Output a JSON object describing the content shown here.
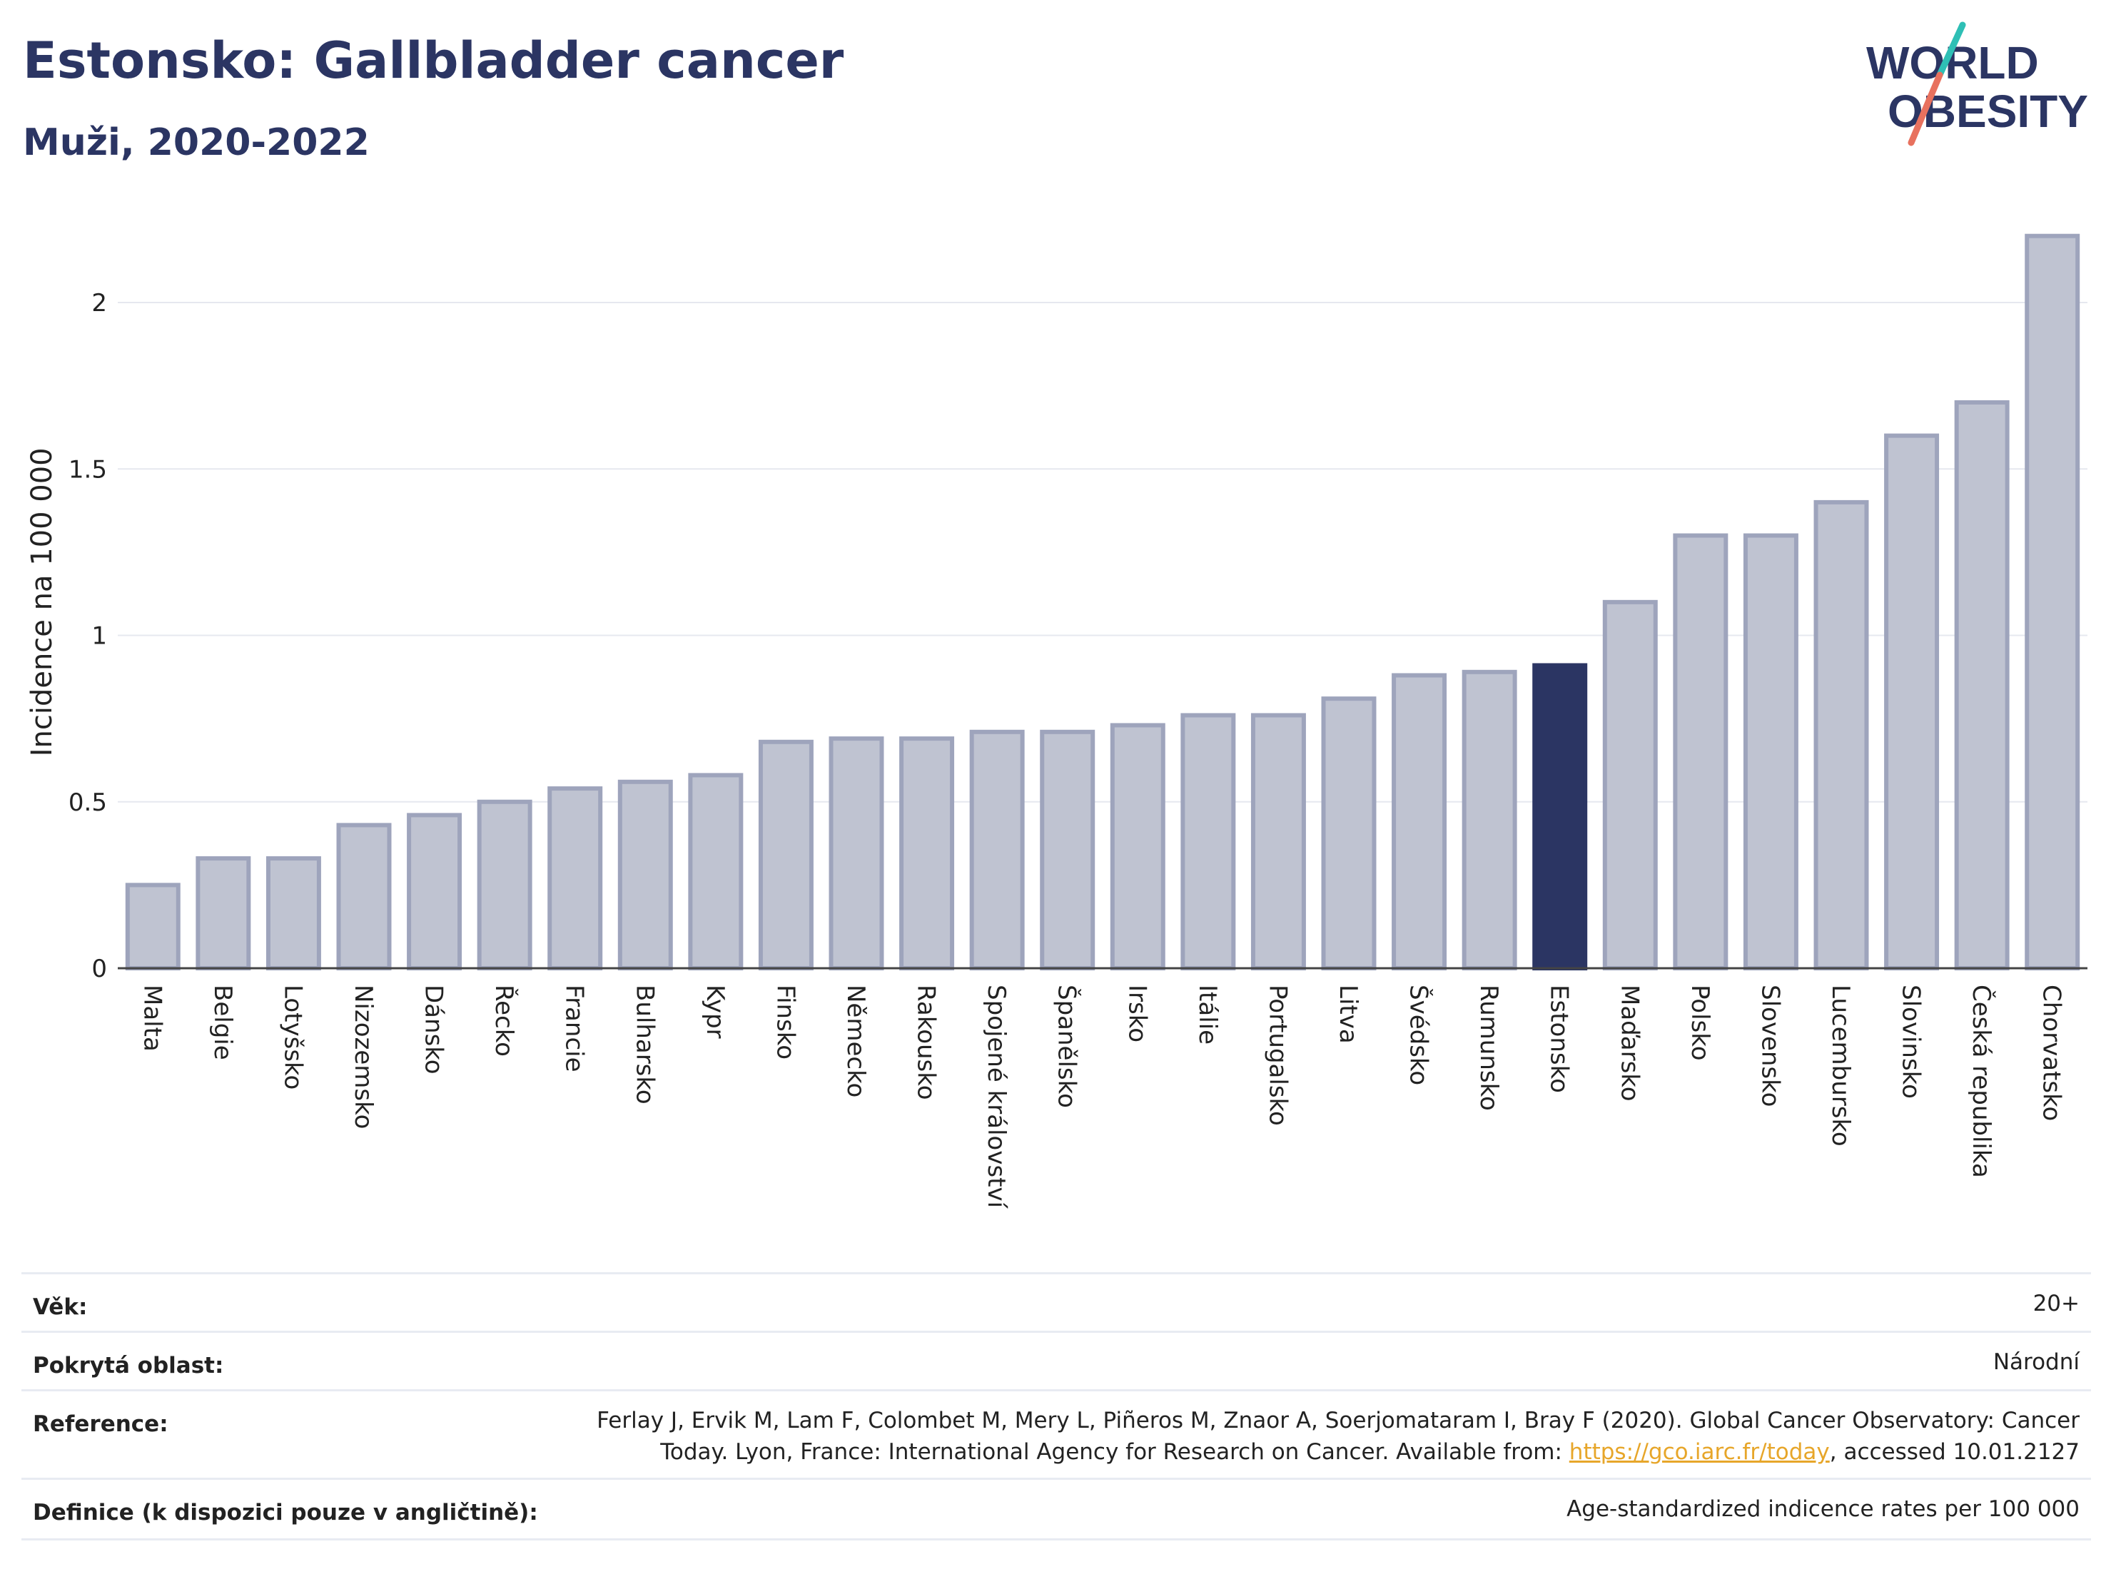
{
  "header": {
    "title": "Estonsko: Gallbladder cancer",
    "subtitle": "Muži, 2020-2022"
  },
  "logo": {
    "line1": "WORLD",
    "line2": "OBESITY"
  },
  "colors": {
    "highlight": "#2b3563",
    "bar_fill": "#bfc3d1",
    "bar_stroke": "#9ea4bc",
    "logo_teal": "#2ebfb5",
    "logo_coral": "#e8715e",
    "link": "#e7a62a"
  },
  "chart_data": {
    "type": "bar",
    "ylabel": "Incidence na 100 000",
    "ylim": [
      0,
      2.2
    ],
    "yticks": [
      0,
      0.5,
      1,
      1.5,
      2
    ],
    "ytick_labels": [
      "0",
      "0.5",
      "1",
      "1.5",
      "2"
    ],
    "grid": true,
    "highlight": "Estonsko",
    "categories": [
      "Malta",
      "Belgie",
      "Lotyšsko",
      "Nizozemsko",
      "Dánsko",
      "Řecko",
      "Francie",
      "Bulharsko",
      "Kypr",
      "Finsko",
      "Německo",
      "Rakousko",
      "Spojené království",
      "Španělsko",
      "Irsko",
      "Itálie",
      "Portugalsko",
      "Litva",
      "Švédsko",
      "Rumunsko",
      "Estonsko",
      "Maďarsko",
      "Polsko",
      "Slovensko",
      "Lucembursko",
      "Slovinsko",
      "Česká republika",
      "Chorvatsko"
    ],
    "values": [
      0.25,
      0.33,
      0.33,
      0.43,
      0.46,
      0.5,
      0.54,
      0.56,
      0.58,
      0.68,
      0.69,
      0.69,
      0.71,
      0.71,
      0.73,
      0.76,
      0.76,
      0.81,
      0.88,
      0.89,
      0.91,
      1.1,
      1.3,
      1.3,
      1.4,
      1.6,
      1.7,
      2.2
    ]
  },
  "meta": {
    "age_label": "Věk:",
    "age_value": "20+",
    "area_label": "Pokrytá oblast:",
    "area_value": "Národní",
    "reference_label": "Reference:",
    "reference_line1": "Ferlay J, Ervik M, Lam F, Colombet M, Mery L, Piñeros M, Znaor A, Soerjomataram I, Bray F (2020). Global Cancer Observatory: Cancer",
    "reference_line2_pre": "Today. Lyon, France: International Agency for Research on Cancer. Available from: ",
    "reference_link": "https://gco.iarc.fr/today",
    "reference_line2_post": ", accessed 10.01.2127",
    "definition_label": "Definice (k dispozici pouze v angličtině):",
    "definition_value": "Age-standardized indicence rates per 100 000"
  }
}
